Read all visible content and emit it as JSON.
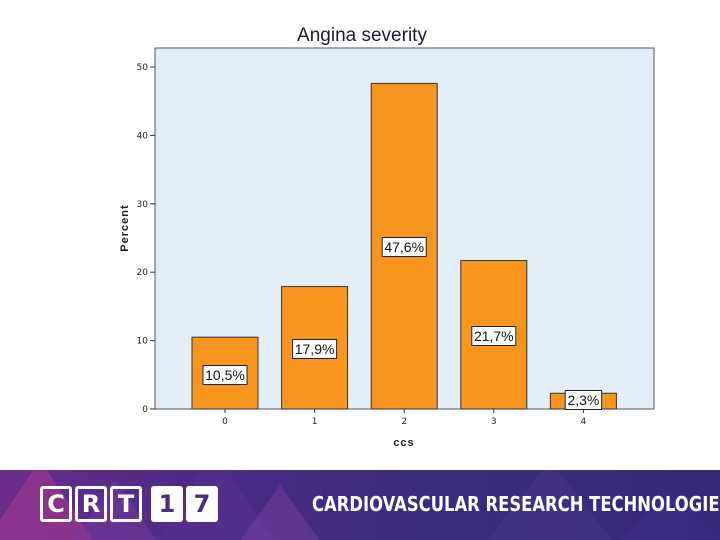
{
  "chart_data": {
    "type": "bar",
    "title": "Angina severity",
    "xlabel": "ccs",
    "ylabel": "Percent",
    "categories": [
      "0",
      "1",
      "2",
      "3",
      "4"
    ],
    "values": [
      10.5,
      17.9,
      47.6,
      21.7,
      2.3
    ],
    "data_labels": [
      "10,5%",
      "17,9%",
      "47,6%",
      "21,7%",
      "2,3%"
    ],
    "y_ticks": [
      0,
      10,
      20,
      30,
      40,
      50
    ],
    "ylim": [
      0,
      52.5
    ],
    "grid": false,
    "colors": {
      "bar": "#f7951f",
      "plot_bg": "#e3eef8",
      "bar_stroke": "#333333"
    }
  },
  "banner": {
    "logo_letters": [
      "C",
      "R",
      "T",
      "1",
      "7"
    ],
    "org_name": "CARDIOVASCULAR RESEARCH TECHNOLOGIES"
  }
}
